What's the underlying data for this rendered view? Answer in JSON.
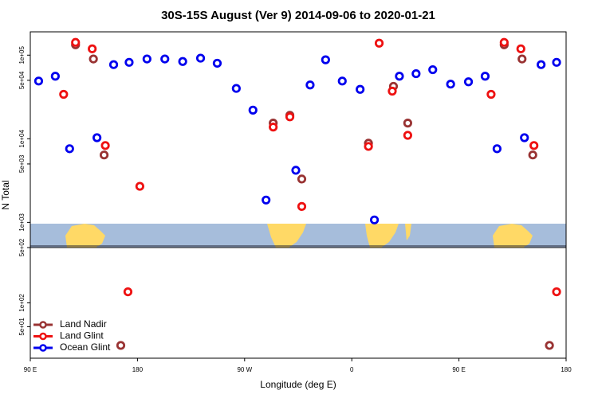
{
  "chart_data": [
    {
      "type": "scatter",
      "title": "30S-15S August (Ver 9)   2014-09-06 to 2020-01-21",
      "y_label": "N Total",
      "xlim": [
        90,
        540
      ],
      "ylim": [
        500,
        190000
      ],
      "log_y": true,
      "yticks": [
        {
          "value": 100000,
          "label": "1e+05"
        },
        {
          "value": 50000,
          "label": "5e+04"
        },
        {
          "value": 10000,
          "label": "1e+04"
        },
        {
          "value": 5000,
          "label": "5e+03"
        },
        {
          "value": 1000,
          "label": "1e+03"
        },
        {
          "value": 500,
          "label": "5e+02"
        }
      ],
      "series": [
        {
          "color": "#993333",
          "x": [
            128,
            143,
            152,
            294,
            308,
            318,
            374,
            395,
            407,
            488,
            503,
            512
          ],
          "values": [
            133000,
            90000,
            6400,
            15400,
            19100,
            3300,
            8850,
            42400,
            15400,
            133000,
            90000,
            6400
          ]
        },
        {
          "color": "#ee1111",
          "x": [
            118,
            128,
            142,
            153,
            182,
            294,
            308,
            318,
            374,
            383,
            394,
            407,
            477,
            488,
            502,
            513
          ],
          "values": [
            34000,
            142000,
            119000,
            8300,
            2700,
            13800,
            18300,
            1550,
            8100,
            139000,
            37100,
            11000,
            34000,
            142000,
            119000,
            8300
          ]
        },
        {
          "color": "#0000ee",
          "x": [
            97,
            111,
            123,
            146,
            160,
            173,
            188,
            203,
            218,
            233,
            247,
            263,
            277,
            288,
            313,
            325,
            338,
            352,
            367,
            379,
            400,
            414,
            428,
            443,
            458,
            472,
            482,
            505,
            519,
            532
          ],
          "values": [
            49000,
            56000,
            7600,
            10300,
            77000,
            82000,
            90000,
            90000,
            84000,
            92000,
            80000,
            40000,
            22000,
            1850,
            4200,
            44000,
            88000,
            49000,
            39000,
            1070,
            56000,
            60000,
            67000,
            45000,
            48000,
            56000,
            7600,
            10300,
            77000,
            82000
          ]
        }
      ]
    },
    {
      "type": "scatter",
      "x_label": "Longitude (deg E)",
      "xlim": [
        90,
        540
      ],
      "ylim": [
        20,
        500
      ],
      "log_y": true,
      "legend": "lower left",
      "xticks": [
        {
          "value": 90,
          "label": "90 E"
        },
        180,
        {
          "value": 270,
          "label": "90 W"
        },
        {
          "value": 360,
          "label": "0"
        },
        {
          "value": 450,
          "label": "90 E"
        },
        {
          "value": 540,
          "label": "180"
        }
      ],
      "yticks": [
        {
          "value": 100,
          "label": "1e+02"
        },
        {
          "value": 50,
          "label": "5e+01"
        }
      ],
      "series": [
        {
          "name": "Land Nadir",
          "color": "#993333",
          "x": [
            166,
            526
          ],
          "values": [
            29,
            29
          ]
        },
        {
          "name": "Land Glint",
          "color": "#ee1111",
          "x": [
            172,
            532
          ],
          "values": [
            138,
            138
          ]
        },
        {
          "name": "Ocean Glint",
          "color": "#0000ee",
          "x": [],
          "values": []
        }
      ]
    }
  ]
}
